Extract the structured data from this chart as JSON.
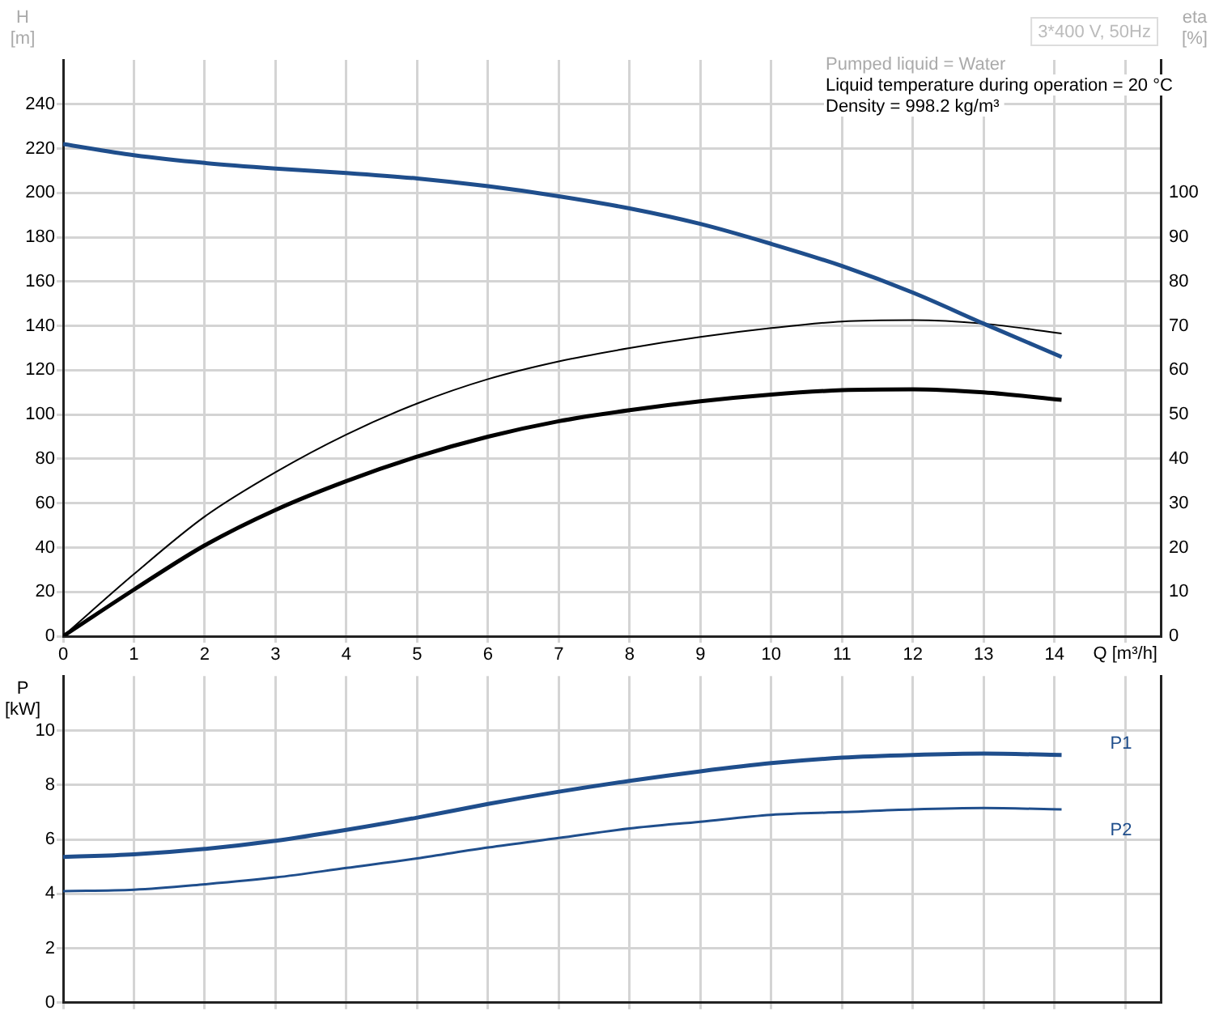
{
  "chart_data": [
    {
      "type": "line",
      "title": "3*400 V, 50Hz",
      "xlabel": "Q [m³/h]",
      "ylabel": "H [m]",
      "y2label": "eta [%]",
      "annotations": [
        "Pumped liquid = Water",
        "Liquid temperature during operation = 20 °C",
        "Density = 998.2 kg/m³"
      ],
      "x": [
        0,
        1,
        2,
        3,
        4,
        5,
        6,
        7,
        8,
        9,
        10,
        11,
        12,
        13,
        14.1
      ],
      "series": [
        {
          "color": "#1f4e8c",
          "values": [
            222,
            217,
            213.5,
            211,
            209,
            206.5,
            203,
            198.5,
            193,
            186,
            177,
            167,
            155,
            141,
            126
          ]
        },
        {
          "color": "#000000",
          "axis": "y2",
          "values": [
            0,
            14,
            27,
            37,
            45.5,
            52.5,
            58,
            62,
            65,
            67.5,
            69.5,
            71,
            71.3,
            70.5,
            68.3
          ]
        },
        {
          "color": "#000000",
          "axis": "y2",
          "values": [
            0,
            10.5,
            20.5,
            28.5,
            35,
            40.5,
            45,
            48.5,
            51,
            53,
            54.5,
            55.5,
            55.7,
            55,
            53.3
          ]
        }
      ],
      "xlim": [
        0,
        15.5
      ],
      "xticks": [
        0,
        1,
        2,
        3,
        4,
        5,
        6,
        7,
        8,
        9,
        10,
        11,
        12,
        13,
        14,
        {
          "value": 15,
          "label": null
        }
      ],
      "ylim": [
        0,
        260
      ],
      "yticks": [
        0,
        20,
        40,
        60,
        80,
        100,
        120,
        140,
        160,
        180,
        200,
        220,
        240
      ],
      "y2lim": [
        0,
        130
      ],
      "y2ticks": [
        0,
        10,
        20,
        30,
        40,
        50,
        60,
        70,
        80,
        90,
        100
      ],
      "grid": true,
      "legend": false,
      "marker": "none",
      "line_style": "solid"
    },
    {
      "type": "line",
      "ylabel": "P [kW]",
      "x": [
        0,
        1,
        2,
        3,
        4,
        5,
        6,
        7,
        8,
        9,
        10,
        11,
        12,
        13,
        14.1
      ],
      "series": [
        {
          "name": "P1",
          "color": "#1f4e8c",
          "values": [
            5.35,
            5.45,
            5.65,
            5.95,
            6.35,
            6.8,
            7.3,
            7.75,
            8.15,
            8.5,
            8.8,
            9.0,
            9.1,
            9.15,
            9.1
          ]
        },
        {
          "name": "P2",
          "color": "#1f4e8c",
          "values": [
            4.1,
            4.15,
            4.35,
            4.6,
            4.95,
            5.3,
            5.7,
            6.05,
            6.4,
            6.65,
            6.9,
            7.0,
            7.1,
            7.15,
            7.1
          ]
        }
      ],
      "xlim": [
        0,
        15.5
      ],
      "xticks": [
        0,
        1,
        2,
        3,
        4,
        5,
        6,
        7,
        8,
        9,
        10,
        11,
        12,
        13,
        14,
        {
          "value": 15,
          "label": null
        }
      ],
      "ylim": [
        0,
        12
      ],
      "yticks": [
        0,
        2,
        4,
        6,
        8,
        10
      ],
      "tick_labels": "y",
      "grid": true,
      "legend": false,
      "marker": "none",
      "line_style": "solid"
    }
  ]
}
